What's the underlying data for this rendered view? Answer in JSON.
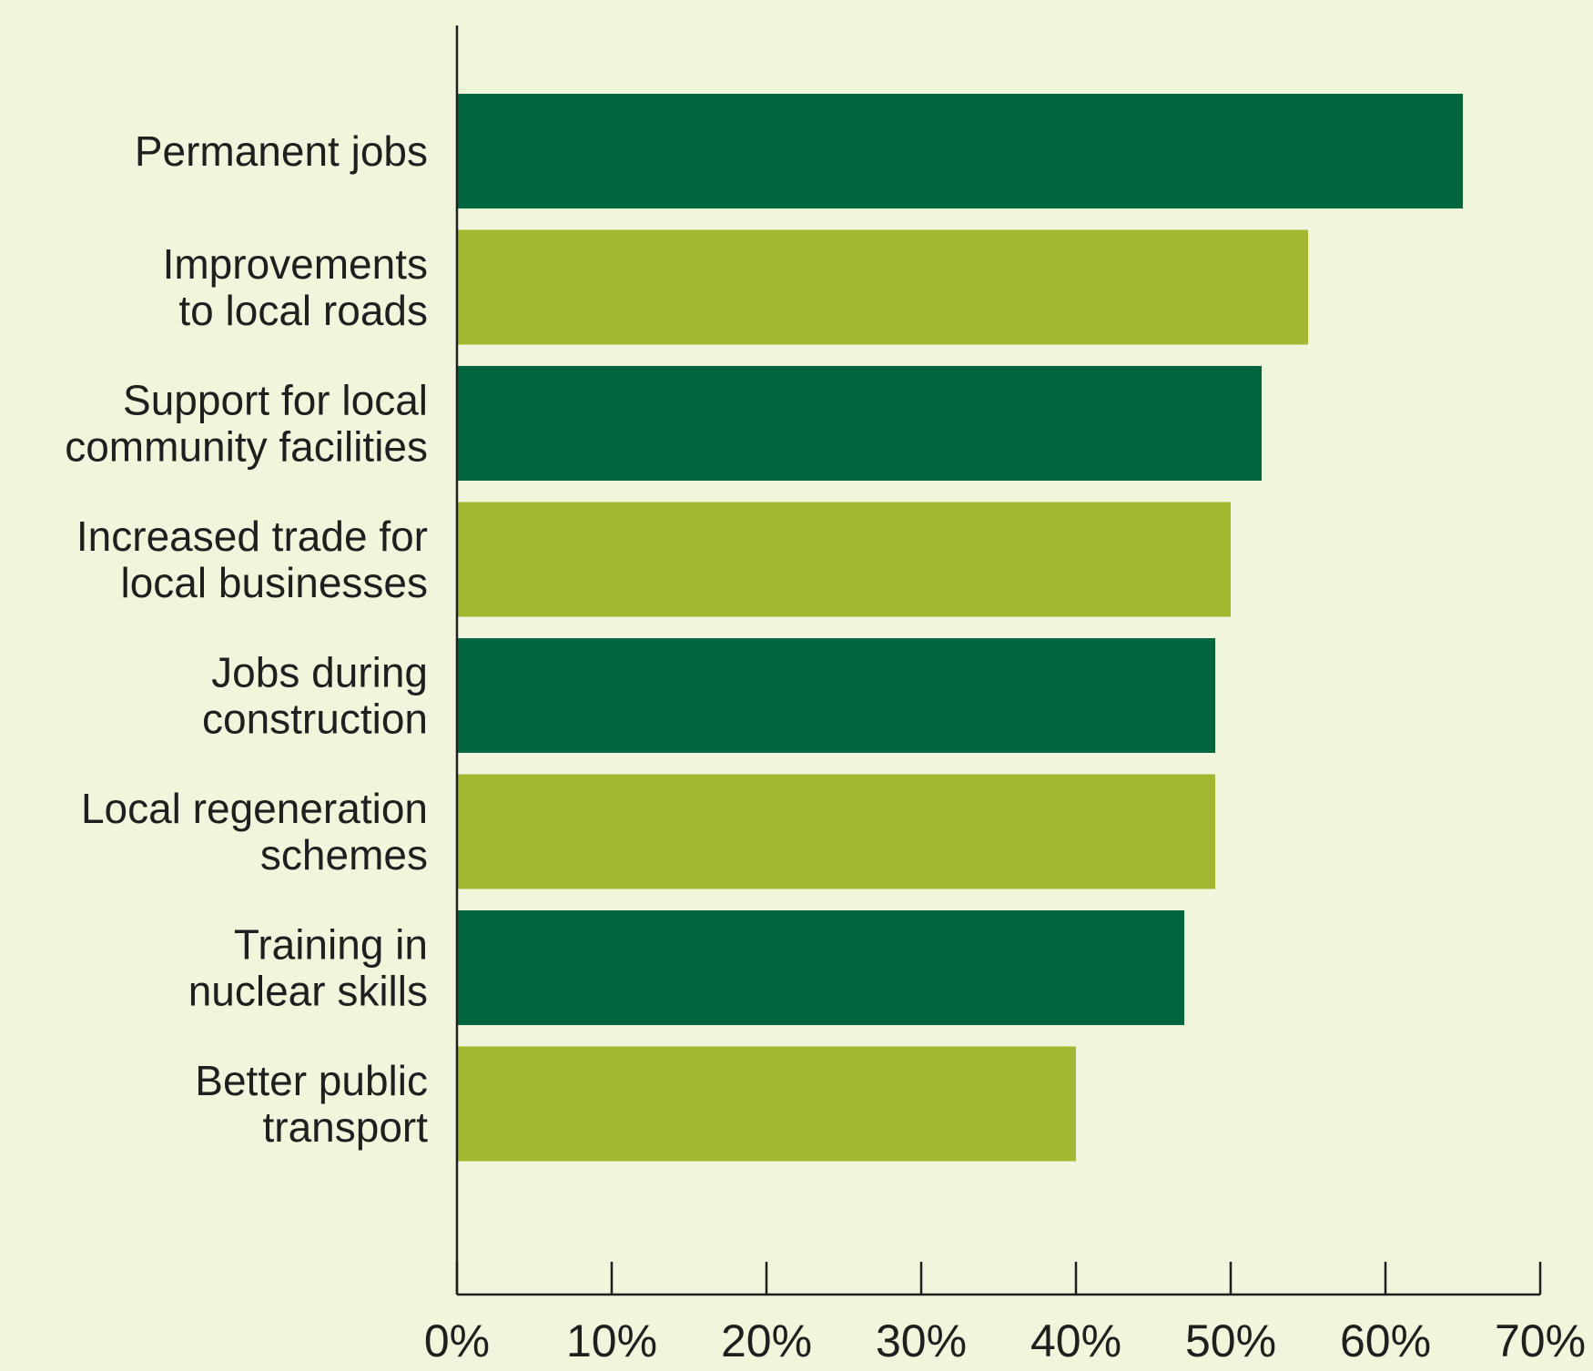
{
  "chart_data": {
    "type": "bar",
    "orientation": "horizontal",
    "title": "",
    "xlabel": "",
    "ylabel": "",
    "xlim": [
      0,
      70
    ],
    "x_ticks": [
      "0%",
      "10%",
      "20%",
      "30%",
      "40%",
      "50%",
      "60%",
      "70%"
    ],
    "grid": false,
    "legend": "none",
    "categories": [
      [
        "Permanent jobs"
      ],
      [
        "Improvements",
        "to local roads"
      ],
      [
        "Support for local",
        "community facilities"
      ],
      [
        "Increased trade for",
        "local businesses"
      ],
      [
        "Jobs during",
        "construction"
      ],
      [
        "Local regeneration",
        "schemes"
      ],
      [
        "Training in",
        "nuclear skills"
      ],
      [
        "Better public",
        "transport"
      ]
    ],
    "values": [
      65,
      55,
      52,
      50,
      49,
      49,
      47,
      40
    ],
    "colors": [
      "#00663f",
      "#a3b830",
      "#00663f",
      "#a3b830",
      "#00663f",
      "#a3b830",
      "#00663f",
      "#a3b830"
    ],
    "background": "#f0f5db",
    "axis_color": "#1f1f1f"
  }
}
